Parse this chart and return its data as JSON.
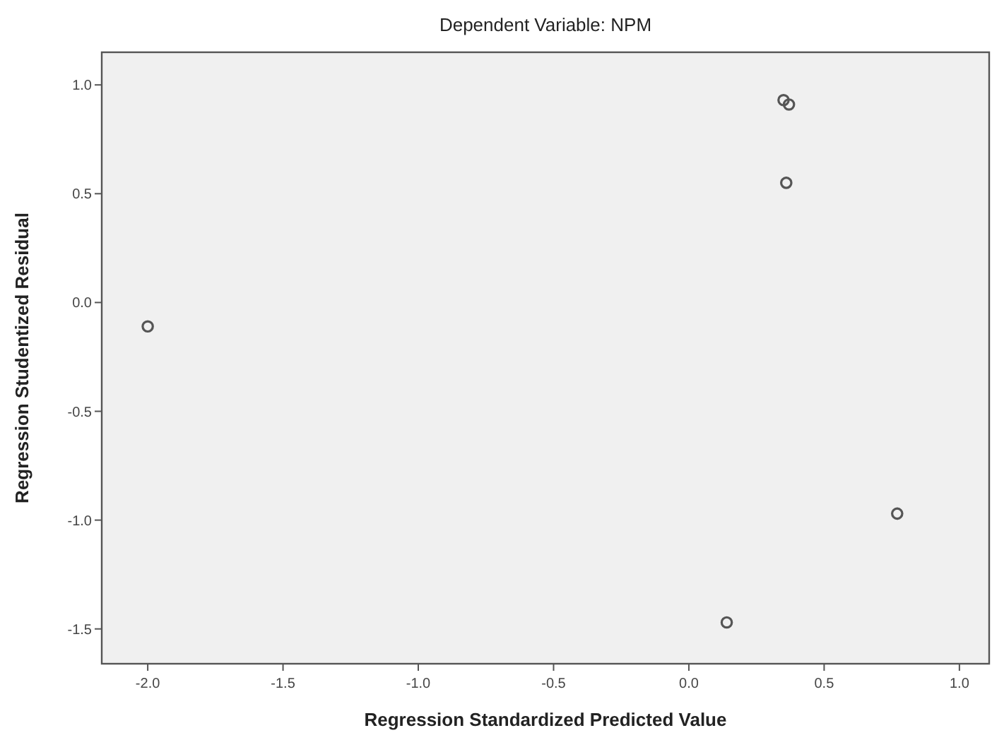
{
  "chart_data": {
    "type": "scatter",
    "title": "Dependent Variable: NPM",
    "xlabel": "Regression Standardized Predicted Value",
    "ylabel": "Regression Studentized Residual",
    "x": [
      -2.0,
      0.35,
      0.37,
      0.36,
      0.77,
      0.14
    ],
    "values": [
      -0.11,
      0.93,
      0.91,
      0.55,
      -0.97,
      -1.47
    ],
    "color": "#555555",
    "marker": "circle",
    "xlim": [
      -2.17,
      1.11
    ],
    "xticks": [
      {
        "value": -2,
        "label": "-2.0"
      },
      -1.5,
      {
        "value": -1,
        "label": "-1.0"
      },
      -0.5,
      {
        "value": 0,
        "label": "0.0"
      },
      0.5,
      {
        "value": 1,
        "label": "1.0"
      }
    ],
    "ylim": [
      -1.66,
      1.15
    ],
    "yticks": [
      {
        "value": 1,
        "label": "1.0"
      },
      0.5,
      {
        "value": 0,
        "label": "0.0"
      },
      -0.5,
      {
        "value": -1,
        "label": "-1.0"
      },
      -1.5
    ],
    "grid": false
  }
}
